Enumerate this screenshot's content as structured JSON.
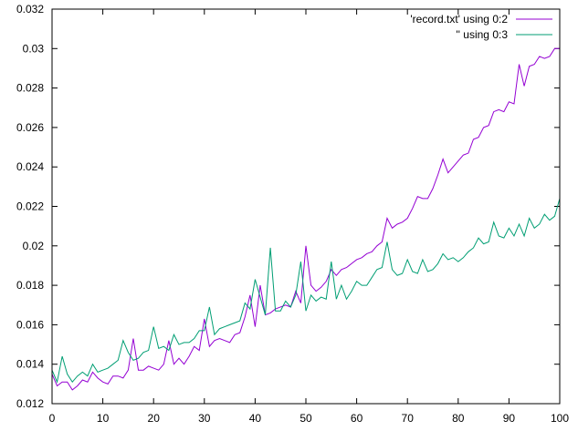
{
  "chart_data": {
    "type": "line",
    "title": "",
    "xlabel": "",
    "ylabel": "",
    "xlim": [
      0,
      100
    ],
    "ylim": [
      0.012,
      0.032
    ],
    "grid": false,
    "legend_position": "top-right",
    "x_ticks": [
      0,
      10,
      20,
      30,
      40,
      50,
      60,
      70,
      80,
      90,
      100
    ],
    "x_tick_labels": [
      "0",
      "10",
      "20",
      "30",
      "40",
      "50",
      "60",
      "70",
      "80",
      "90",
      "100"
    ],
    "y_ticks": [
      0.012,
      0.014,
      0.016,
      0.018,
      0.02,
      0.022,
      0.024,
      0.026,
      0.028,
      0.03,
      0.032
    ],
    "y_tick_labels": [
      "0.012",
      "0.014",
      "0.016",
      "0.018",
      "0.02",
      "0.022",
      "0.024",
      "0.026",
      "0.028",
      "0.03",
      "0.032"
    ],
    "series": [
      {
        "name": "'record.txt' using 0:2",
        "color": "#9400d3",
        "x": [
          0,
          1,
          2,
          3,
          4,
          5,
          6,
          7,
          8,
          9,
          10,
          11,
          12,
          13,
          14,
          15,
          16,
          17,
          18,
          19,
          20,
          21,
          22,
          23,
          24,
          25,
          26,
          27,
          28,
          29,
          30,
          31,
          32,
          33,
          34,
          35,
          36,
          37,
          38,
          39,
          40,
          41,
          42,
          43,
          44,
          45,
          46,
          47,
          48,
          49,
          50,
          51,
          52,
          53,
          54,
          55,
          56,
          57,
          58,
          59,
          60,
          61,
          62,
          63,
          64,
          65,
          66,
          67,
          68,
          69,
          70,
          71,
          72,
          73,
          74,
          75,
          76,
          77,
          78,
          79,
          80,
          81,
          82,
          83,
          84,
          85,
          86,
          87,
          88,
          89,
          90,
          91,
          92,
          93,
          94,
          95,
          96,
          97,
          98,
          99,
          100
        ],
        "y": [
          0.0135,
          0.0129,
          0.0131,
          0.0131,
          0.0127,
          0.0129,
          0.0132,
          0.0131,
          0.0136,
          0.0133,
          0.0131,
          0.013,
          0.0134,
          0.0134,
          0.0133,
          0.0137,
          0.0153,
          0.0137,
          0.0137,
          0.0139,
          0.0138,
          0.0137,
          0.014,
          0.0152,
          0.014,
          0.0143,
          0.014,
          0.0144,
          0.0149,
          0.0147,
          0.0163,
          0.0149,
          0.0152,
          0.0153,
          0.0152,
          0.0151,
          0.0155,
          0.0156,
          0.0164,
          0.0175,
          0.0159,
          0.018,
          0.0165,
          0.0166,
          0.0168,
          0.0169,
          0.017,
          0.0169,
          0.0177,
          0.0171,
          0.02,
          0.018,
          0.0177,
          0.0179,
          0.0182,
          0.0188,
          0.0185,
          0.0188,
          0.0189,
          0.0191,
          0.0193,
          0.0194,
          0.0196,
          0.0197,
          0.02,
          0.0202,
          0.0214,
          0.0209,
          0.0211,
          0.0212,
          0.0214,
          0.0219,
          0.0225,
          0.0224,
          0.0224,
          0.0229,
          0.0236,
          0.0244,
          0.0237,
          0.024,
          0.0243,
          0.0246,
          0.0247,
          0.0254,
          0.0255,
          0.026,
          0.0261,
          0.0268,
          0.0269,
          0.0268,
          0.0273,
          0.0272,
          0.0292,
          0.0281,
          0.0291,
          0.0292,
          0.0296,
          0.0295,
          0.0296,
          0.03,
          0.03
        ]
      },
      {
        "name": "'' using 0:3",
        "color": "#009e73",
        "x": [
          0,
          1,
          2,
          3,
          4,
          5,
          6,
          7,
          8,
          9,
          10,
          11,
          12,
          13,
          14,
          15,
          16,
          17,
          18,
          19,
          20,
          21,
          22,
          23,
          24,
          25,
          26,
          27,
          28,
          29,
          30,
          31,
          32,
          33,
          34,
          35,
          36,
          37,
          38,
          39,
          40,
          41,
          42,
          43,
          44,
          45,
          46,
          47,
          48,
          49,
          50,
          51,
          52,
          53,
          54,
          55,
          56,
          57,
          58,
          59,
          60,
          61,
          62,
          63,
          64,
          65,
          66,
          67,
          68,
          69,
          70,
          71,
          72,
          73,
          74,
          75,
          76,
          77,
          78,
          79,
          80,
          81,
          82,
          83,
          84,
          85,
          86,
          87,
          88,
          89,
          90,
          91,
          92,
          93,
          94,
          95,
          96,
          97,
          98,
          99,
          100
        ],
        "y": [
          0.0137,
          0.0131,
          0.0144,
          0.0135,
          0.0131,
          0.0134,
          0.0136,
          0.0134,
          0.014,
          0.0136,
          0.0137,
          0.0138,
          0.014,
          0.0142,
          0.0152,
          0.0146,
          0.0142,
          0.0143,
          0.0146,
          0.0147,
          0.0159,
          0.0148,
          0.0149,
          0.0147,
          0.0155,
          0.015,
          0.0151,
          0.0151,
          0.0153,
          0.0157,
          0.0157,
          0.0169,
          0.0155,
          0.0158,
          0.0159,
          0.016,
          0.0161,
          0.0162,
          0.0171,
          0.0168,
          0.0183,
          0.0174,
          0.0165,
          0.0199,
          0.0167,
          0.0167,
          0.0172,
          0.0169,
          0.0175,
          0.0192,
          0.0167,
          0.0175,
          0.0172,
          0.0174,
          0.0173,
          0.0192,
          0.0173,
          0.018,
          0.0173,
          0.0177,
          0.0182,
          0.018,
          0.018,
          0.0184,
          0.0188,
          0.0189,
          0.0202,
          0.0188,
          0.0185,
          0.0186,
          0.0193,
          0.0187,
          0.0186,
          0.0193,
          0.0187,
          0.0188,
          0.0191,
          0.0196,
          0.0193,
          0.0194,
          0.0192,
          0.0194,
          0.0197,
          0.0199,
          0.0204,
          0.0201,
          0.0202,
          0.0212,
          0.0205,
          0.0204,
          0.0209,
          0.0205,
          0.0211,
          0.0205,
          0.0214,
          0.0209,
          0.0211,
          0.0216,
          0.0213,
          0.0215,
          0.0224
        ]
      }
    ]
  }
}
